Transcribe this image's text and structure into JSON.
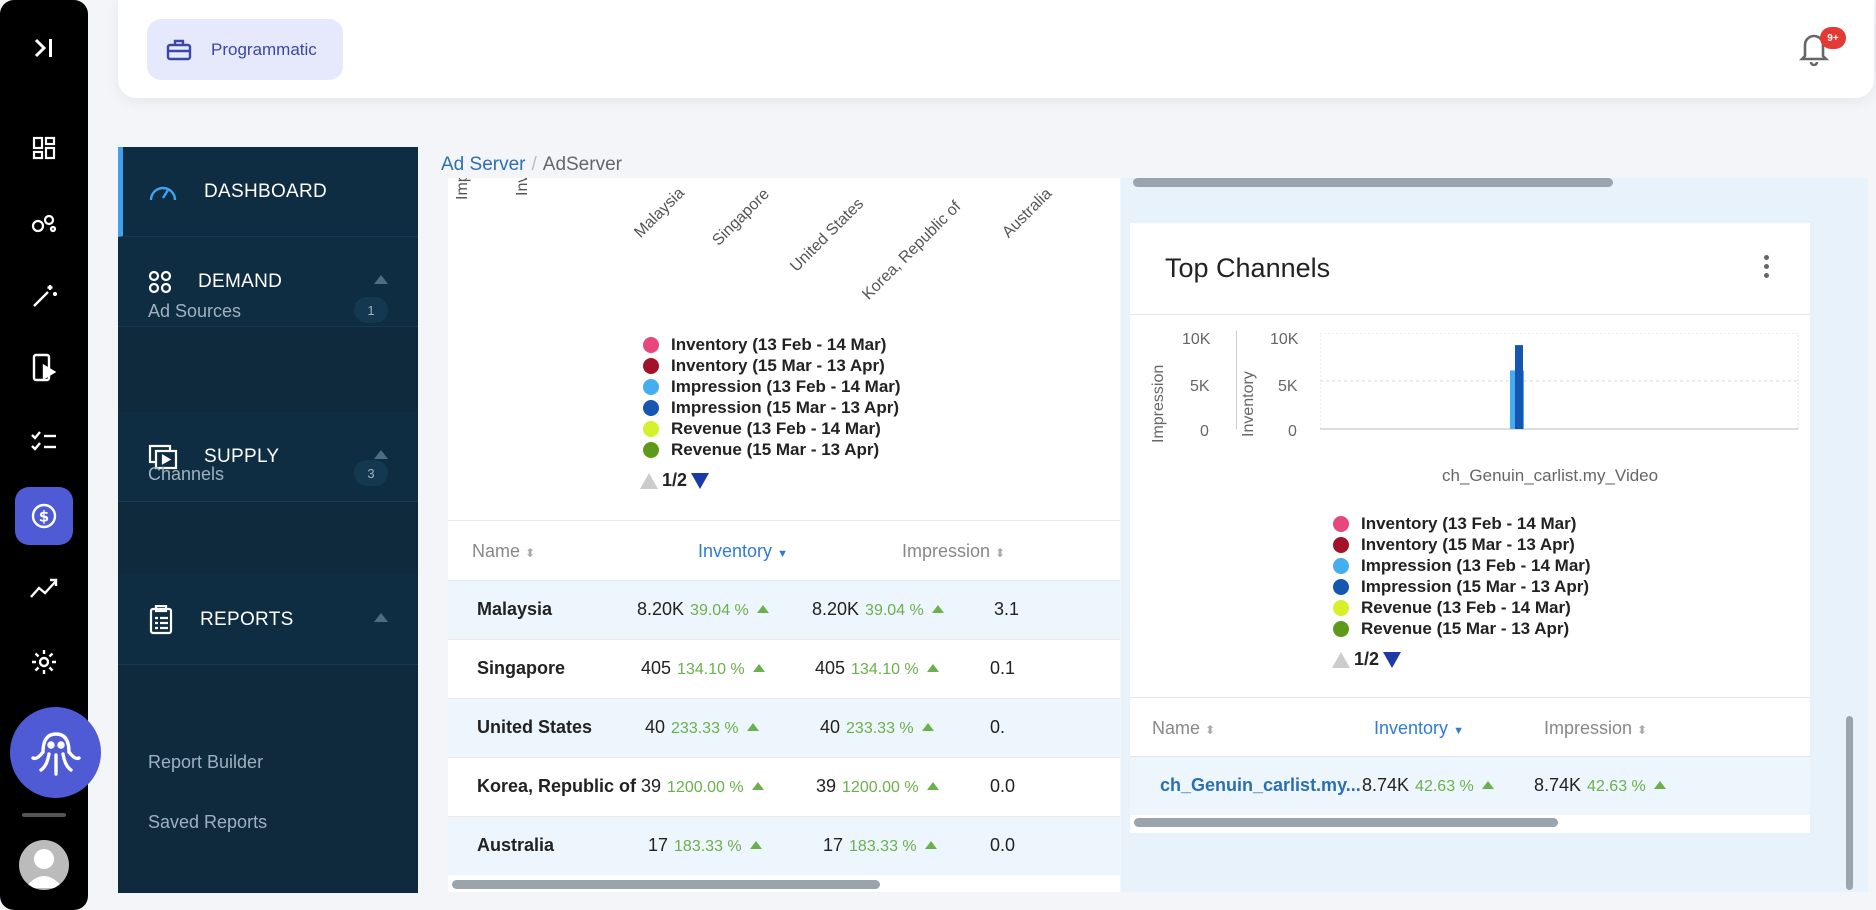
{
  "topbar": {
    "app_label": "Programmatic",
    "notif_badge": "9+"
  },
  "sidebar": {
    "sections": [
      {
        "label": "DASHBOARD"
      },
      {
        "label": "DEMAND"
      },
      {
        "label": "SUPPLY"
      },
      {
        "label": "REPORTS"
      }
    ],
    "demand_items": [
      {
        "label": "Ad Sources",
        "count": "1"
      }
    ],
    "supply_items": [
      {
        "label": "Channels",
        "count": "3"
      }
    ],
    "report_items": [
      {
        "label": "Report Builder"
      },
      {
        "label": "Saved Reports"
      }
    ]
  },
  "breadcrumb": {
    "root": "Ad Server",
    "sep": "/",
    "current": "AdServer"
  },
  "geo_chart": {
    "clipped_labels": [
      "Imp",
      "Inv"
    ],
    "countries": [
      "Malaysia",
      "Singapore",
      "United States",
      "Korea, Republic of",
      "Australia"
    ],
    "legend": [
      {
        "label": "Inventory (13 Feb - 14 Mar)",
        "color": "#e8477e"
      },
      {
        "label": "Inventory (15 Mar - 13 Apr)",
        "color": "#a3122a"
      },
      {
        "label": "Impression (13 Feb - 14 Mar)",
        "color": "#45aef0"
      },
      {
        "label": "Impression (15 Mar - 13 Apr)",
        "color": "#1456b0"
      },
      {
        "label": "Revenue (13 Feb - 14 Mar)",
        "color": "#d6f02a"
      },
      {
        "label": "Revenue (15 Mar - 13 Apr)",
        "color": "#5e9a1a"
      }
    ],
    "pager": "1/2"
  },
  "geo_table": {
    "headers": {
      "name": "Name",
      "inventory": "Inventory",
      "impression": "Impression"
    },
    "rows": [
      {
        "name": "Malaysia",
        "inv": "8.20K",
        "inv_pct": "39.04 %",
        "imp": "8.20K",
        "imp_pct": "39.04 %",
        "rev": "3.1"
      },
      {
        "name": "Singapore",
        "inv": "405",
        "inv_pct": "134.10 %",
        "imp": "405",
        "imp_pct": "134.10 %",
        "rev": "0.1"
      },
      {
        "name": "United States",
        "inv": "40",
        "inv_pct": "233.33 %",
        "imp": "40",
        "imp_pct": "233.33 %",
        "rev": "0."
      },
      {
        "name": "Korea, Republic of",
        "inv": "39",
        "inv_pct": "1200.00 %",
        "imp": "39",
        "imp_pct": "1200.00 %",
        "rev": "0.0"
      },
      {
        "name": "Australia",
        "inv": "17",
        "inv_pct": "183.33 %",
        "imp": "17",
        "imp_pct": "183.33 %",
        "rev": "0.0"
      }
    ]
  },
  "top_channels": {
    "title": "Top Channels",
    "axis_left": {
      "label": "Impression",
      "ticks": [
        "10K",
        "5K",
        "0"
      ]
    },
    "axis_right": {
      "label": "Inventory",
      "ticks": [
        "10K",
        "5K",
        "0"
      ]
    },
    "category": "ch_Genuin_carlist.my_Video",
    "legend": [
      {
        "label": "Inventory (13 Feb - 14 Mar)",
        "color": "#e8477e"
      },
      {
        "label": "Inventory (15 Mar - 13 Apr)",
        "color": "#a3122a"
      },
      {
        "label": "Impression (13 Feb - 14 Mar)",
        "color": "#45aef0"
      },
      {
        "label": "Impression (15 Mar - 13 Apr)",
        "color": "#1456b0"
      },
      {
        "label": "Revenue (13 Feb - 14 Mar)",
        "color": "#d6f02a"
      },
      {
        "label": "Revenue (15 Mar - 13 Apr)",
        "color": "#5e9a1a"
      }
    ],
    "pager": "1/2",
    "table": {
      "headers": {
        "name": "Name",
        "inventory": "Inventory",
        "impression": "Impression"
      },
      "rows": [
        {
          "name": "ch_Genuin_carlist.my...",
          "inv": "8.74K",
          "inv_pct": "42.63 %",
          "imp": "8.74K",
          "imp_pct": "42.63 %"
        }
      ]
    }
  },
  "chart_data": {
    "type": "bar",
    "categories": [
      "ch_Genuin_carlist.my_Video"
    ],
    "series": [
      {
        "name": "Impression (13 Feb - 14 Mar)",
        "values": [
          6100
        ]
      },
      {
        "name": "Impression (15 Mar - 13 Apr)",
        "values": [
          8740
        ]
      }
    ],
    "ylim": [
      0,
      10000
    ],
    "ylabel": "Impression",
    "y2label": "Inventory",
    "grid": true
  }
}
